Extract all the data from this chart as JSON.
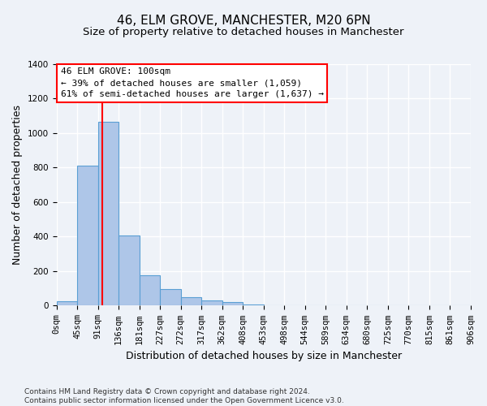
{
  "title": "46, ELM GROVE, MANCHESTER, M20 6PN",
  "subtitle": "Size of property relative to detached houses in Manchester",
  "xlabel": "Distribution of detached houses by size in Manchester",
  "ylabel": "Number of detached properties",
  "bar_values": [
    25,
    810,
    1065,
    405,
    178,
    95,
    50,
    30,
    20,
    5,
    2,
    1,
    0,
    0,
    0,
    0,
    0,
    0,
    0,
    0
  ],
  "bar_color": "#aec6e8",
  "bar_edge_color": "#5a9fd4",
  "bin_labels": [
    "0sqm",
    "45sqm",
    "91sqm",
    "136sqm",
    "181sqm",
    "227sqm",
    "272sqm",
    "317sqm",
    "362sqm",
    "408sqm",
    "453sqm",
    "498sqm",
    "544sqm",
    "589sqm",
    "634sqm",
    "680sqm",
    "725sqm",
    "770sqm",
    "815sqm",
    "861sqm",
    "906sqm"
  ],
  "ylim": [
    0,
    1400
  ],
  "yticks": [
    0,
    200,
    400,
    600,
    800,
    1000,
    1200,
    1400
  ],
  "property_line_x": 2.22,
  "annotation_line1": "46 ELM GROVE: 100sqm",
  "annotation_line2": "← 39% of detached houses are smaller (1,059)",
  "annotation_line3": "61% of semi-detached houses are larger (1,637) →",
  "footer_text": "Contains HM Land Registry data © Crown copyright and database right 2024.\nContains public sector information licensed under the Open Government Licence v3.0.",
  "background_color": "#eef2f8",
  "plot_background_color": "#eef2f8",
  "grid_color": "#ffffff",
  "title_fontsize": 11,
  "subtitle_fontsize": 9.5,
  "label_fontsize": 9,
  "tick_fontsize": 7.5,
  "footer_fontsize": 6.5,
  "annotation_fontsize": 8
}
